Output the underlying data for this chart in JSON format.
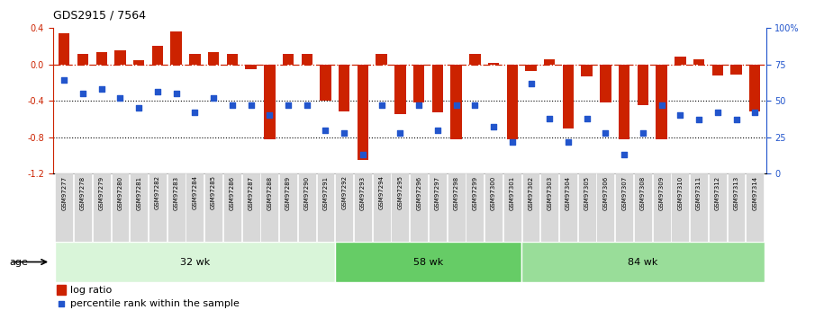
{
  "title": "GDS2915 / 7564",
  "samples": [
    "GSM97277",
    "GSM97278",
    "GSM97279",
    "GSM97280",
    "GSM97281",
    "GSM97282",
    "GSM97283",
    "GSM97284",
    "GSM97285",
    "GSM97286",
    "GSM97287",
    "GSM97288",
    "GSM97289",
    "GSM97290",
    "GSM97291",
    "GSM97292",
    "GSM97293",
    "GSM97294",
    "GSM97295",
    "GSM97296",
    "GSM97297",
    "GSM97298",
    "GSM97299",
    "GSM97300",
    "GSM97301",
    "GSM97302",
    "GSM97303",
    "GSM97304",
    "GSM97305",
    "GSM97306",
    "GSM97307",
    "GSM97308",
    "GSM97309",
    "GSM97310",
    "GSM97311",
    "GSM97312",
    "GSM97313",
    "GSM97314"
  ],
  "log_ratio": [
    0.34,
    0.11,
    0.13,
    0.15,
    0.05,
    0.2,
    0.36,
    0.11,
    0.13,
    0.11,
    -0.05,
    -0.82,
    0.11,
    0.11,
    -0.4,
    -0.52,
    -1.05,
    0.11,
    -0.55,
    -0.42,
    -0.53,
    -0.82,
    0.11,
    0.02,
    -0.82,
    -0.07,
    0.06,
    -0.7,
    -0.13,
    -0.42,
    -0.82,
    -0.45,
    -0.82,
    0.08,
    0.06,
    -0.12,
    -0.11,
    -0.52
  ],
  "percentile": [
    64,
    55,
    58,
    52,
    45,
    56,
    55,
    42,
    52,
    47,
    47,
    40,
    47,
    47,
    30,
    28,
    13,
    47,
    28,
    47,
    30,
    47,
    47,
    32,
    22,
    62,
    38,
    22,
    38,
    28,
    13,
    28,
    47,
    40,
    37,
    42,
    37,
    42
  ],
  "groups": [
    {
      "label": "32 wk",
      "start": 0,
      "end": 15,
      "color": "#d9f5d9"
    },
    {
      "label": "58 wk",
      "start": 15,
      "end": 25,
      "color": "#88dd88"
    },
    {
      "label": "84 wk",
      "start": 25,
      "end": 38,
      "color": "#aaeaaa"
    }
  ],
  "bar_color": "#cc2200",
  "dot_color": "#2255cc",
  "ref_line_color": "#cc2200",
  "background_color": "#ffffff",
  "ylim": [
    -1.2,
    0.4
  ],
  "yticks_left": [
    -1.2,
    -0.8,
    -0.4,
    0.0,
    0.4
  ],
  "yticks_right": [
    0,
    25,
    50,
    75,
    100
  ],
  "dotted_lines": [
    -0.4,
    -0.8
  ],
  "age_label": "age"
}
